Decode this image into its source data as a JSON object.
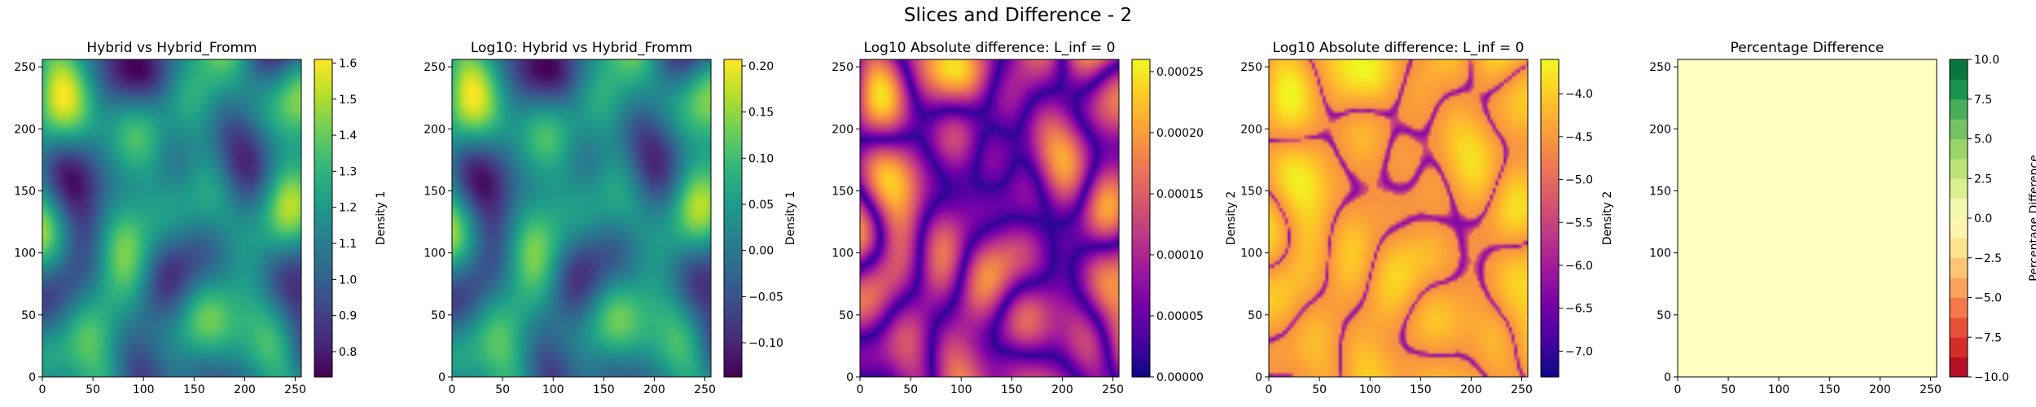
{
  "figure": {
    "title": "Slices and Difference - 2"
  },
  "chart_data": [
    {
      "type": "heatmap",
      "title": "Hybrid vs Hybrid_Fromm",
      "colormap": "viridis",
      "xlim": [
        0,
        256
      ],
      "ylim": [
        0,
        256
      ],
      "xticks": [
        "0",
        "50",
        "100",
        "150",
        "200",
        "250"
      ],
      "yticks": [
        "0",
        "50",
        "100",
        "150",
        "200",
        "250"
      ],
      "colorbar": {
        "label": "Density 1",
        "range": [
          0.73,
          1.61
        ],
        "ticks": [
          "0.8",
          "0.9",
          "1.0",
          "1.1",
          "1.2",
          "1.3",
          "1.4",
          "1.5",
          "1.6"
        ],
        "tick_values": [
          0.8,
          0.9,
          1.0,
          1.1,
          1.2,
          1.3,
          1.4,
          1.5,
          1.6
        ]
      }
    },
    {
      "type": "heatmap",
      "title": "Log10: Hybrid vs Hybrid_Fromm",
      "colormap": "viridis",
      "xlim": [
        0,
        256
      ],
      "ylim": [
        0,
        256
      ],
      "xticks": [
        "0",
        "50",
        "100",
        "150",
        "200",
        "250"
      ],
      "yticks": [
        "0",
        "50",
        "100",
        "150",
        "200",
        "250"
      ],
      "colorbar": {
        "label": "Density 1",
        "range": [
          -0.137,
          0.207
        ],
        "ticks": [
          "−0.10",
          "−0.05",
          "0.00",
          "0.05",
          "0.10",
          "0.15",
          "0.20"
        ],
        "tick_values": [
          -0.1,
          -0.05,
          0.0,
          0.05,
          0.1,
          0.15,
          0.2
        ]
      }
    },
    {
      "type": "heatmap",
      "title": "Log10 Absolute difference: L_inf = 0",
      "colormap": "plasma",
      "xlim": [
        0,
        256
      ],
      "ylim": [
        0,
        256
      ],
      "xticks": [
        "0",
        "50",
        "100",
        "150",
        "200",
        "250"
      ],
      "yticks": [
        "0",
        "50",
        "100",
        "150",
        "200",
        "250"
      ],
      "colorbar": {
        "label": "Density 2",
        "range": [
          0,
          0.00026
        ],
        "ticks": [
          "0.00000",
          "0.00005",
          "0.00010",
          "0.00015",
          "0.00020",
          "0.00025"
        ],
        "tick_values": [
          0,
          5e-05,
          0.0001,
          0.00015,
          0.0002,
          0.00025
        ]
      }
    },
    {
      "type": "heatmap",
      "title": "Log10 Absolute difference: L_inf = 0",
      "colormap": "plasma",
      "xlim": [
        0,
        256
      ],
      "ylim": [
        0,
        256
      ],
      "xticks": [
        "0",
        "50",
        "100",
        "150",
        "200",
        "250"
      ],
      "yticks": [
        "0",
        "50",
        "100",
        "150",
        "200",
        "250"
      ],
      "colorbar": {
        "label": "Density 2",
        "range": [
          -7.3,
          -3.6
        ],
        "ticks": [
          "−4.0",
          "−4.5",
          "−5.0",
          "−5.5",
          "−6.0",
          "−6.5",
          "−7.0"
        ],
        "tick_values": [
          -4.0,
          -4.5,
          -5.0,
          -5.5,
          -6.0,
          -6.5,
          -7.0
        ]
      }
    },
    {
      "type": "heatmap",
      "title": "Percentage Difference",
      "colormap": "RdYlGn",
      "xlim": [
        0,
        256
      ],
      "ylim": [
        0,
        256
      ],
      "xticks": [
        "0",
        "50",
        "100",
        "150",
        "200",
        "250"
      ],
      "yticks": [
        "0",
        "50",
        "100",
        "150",
        "200",
        "250"
      ],
      "fill_value": 0,
      "colorbar": {
        "label": "Percentage Difference",
        "range": [
          -10,
          10
        ],
        "levels": 16,
        "ticks": [
          "10.0",
          "7.5",
          "5.0",
          "2.5",
          "0.0",
          "−2.5",
          "−5.0",
          "−7.5",
          "−10.0"
        ],
        "tick_values": [
          10,
          7.5,
          5,
          2.5,
          0,
          -2.5,
          -5,
          -7.5,
          -10
        ]
      }
    }
  ]
}
